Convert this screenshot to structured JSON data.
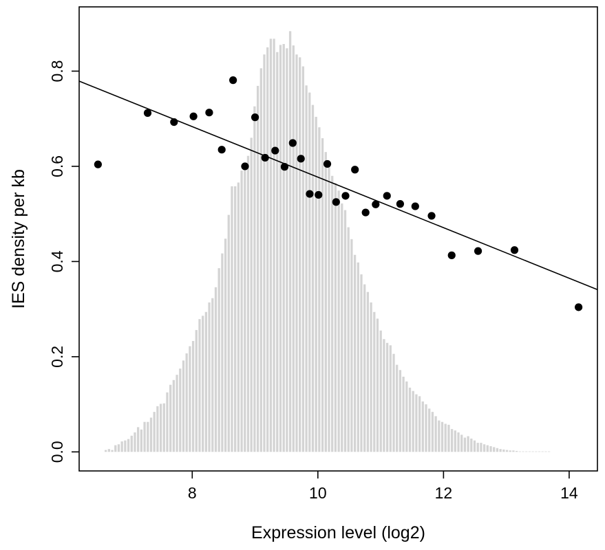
{
  "chart_data": {
    "type": "scatter",
    "xlabel": "Expression level (log2)",
    "ylabel": "IES density per kb",
    "xlim": [
      6.2,
      14.45
    ],
    "ylim": [
      -0.04,
      0.935
    ],
    "x_ticks": [
      8,
      10,
      12,
      14
    ],
    "y_ticks": [
      0.0,
      0.2,
      0.4,
      0.6,
      0.8
    ],
    "x_tick_labels": [
      "8",
      "10",
      "12",
      "14"
    ],
    "y_tick_labels": [
      "0.0",
      "0.2",
      "0.4",
      "0.6",
      "0.8"
    ],
    "grid": false,
    "colors": {
      "histogram": "#d4d4d4",
      "points": "#000000",
      "line": "#000000"
    },
    "histogram": {
      "bin_start": 6.6,
      "bin_width": 0.0515,
      "values": [
        0.004,
        0.006,
        0.004,
        0.014,
        0.016,
        0.022,
        0.024,
        0.027,
        0.034,
        0.041,
        0.052,
        0.047,
        0.063,
        0.063,
        0.072,
        0.084,
        0.096,
        0.101,
        0.102,
        0.125,
        0.141,
        0.151,
        0.162,
        0.175,
        0.192,
        0.207,
        0.222,
        0.233,
        0.256,
        0.279,
        0.286,
        0.294,
        0.314,
        0.323,
        0.346,
        0.386,
        0.417,
        0.448,
        0.498,
        0.558,
        0.558,
        0.566,
        0.591,
        0.608,
        0.622,
        0.66,
        0.726,
        0.769,
        0.806,
        0.835,
        0.85,
        0.868,
        0.868,
        0.84,
        0.855,
        0.857,
        0.848,
        0.884,
        0.854,
        0.835,
        0.829,
        0.81,
        0.77,
        0.755,
        0.729,
        0.704,
        0.682,
        0.659,
        0.63,
        0.6,
        0.58,
        0.565,
        0.549,
        0.522,
        0.508,
        0.472,
        0.447,
        0.414,
        0.398,
        0.373,
        0.352,
        0.336,
        0.314,
        0.294,
        0.28,
        0.255,
        0.237,
        0.229,
        0.224,
        0.206,
        0.183,
        0.172,
        0.158,
        0.148,
        0.135,
        0.128,
        0.121,
        0.117,
        0.106,
        0.1,
        0.091,
        0.084,
        0.075,
        0.066,
        0.063,
        0.059,
        0.057,
        0.048,
        0.045,
        0.041,
        0.036,
        0.03,
        0.033,
        0.028,
        0.024,
        0.019,
        0.019,
        0.016,
        0.014,
        0.012,
        0.01,
        0.008,
        0.006,
        0.005,
        0.004,
        0.003,
        0.003,
        0.002,
        0.001,
        0.001,
        0.001,
        0.001,
        0.001,
        0.001,
        0.001,
        0.001,
        0.001,
        0.001
      ]
    },
    "points": [
      {
        "x": 6.5,
        "y": 0.604
      },
      {
        "x": 7.29,
        "y": 0.712
      },
      {
        "x": 7.71,
        "y": 0.693
      },
      {
        "x": 8.02,
        "y": 0.705
      },
      {
        "x": 8.27,
        "y": 0.713
      },
      {
        "x": 8.47,
        "y": 0.635
      },
      {
        "x": 8.65,
        "y": 0.781
      },
      {
        "x": 8.84,
        "y": 0.6
      },
      {
        "x": 9.0,
        "y": 0.703
      },
      {
        "x": 9.16,
        "y": 0.618
      },
      {
        "x": 9.32,
        "y": 0.633
      },
      {
        "x": 9.47,
        "y": 0.599
      },
      {
        "x": 9.6,
        "y": 0.649
      },
      {
        "x": 9.73,
        "y": 0.616
      },
      {
        "x": 9.87,
        "y": 0.542
      },
      {
        "x": 10.01,
        "y": 0.54
      },
      {
        "x": 10.15,
        "y": 0.605
      },
      {
        "x": 10.29,
        "y": 0.525
      },
      {
        "x": 10.44,
        "y": 0.538
      },
      {
        "x": 10.59,
        "y": 0.593
      },
      {
        "x": 10.76,
        "y": 0.503
      },
      {
        "x": 10.92,
        "y": 0.52
      },
      {
        "x": 11.1,
        "y": 0.538
      },
      {
        "x": 11.31,
        "y": 0.521
      },
      {
        "x": 11.55,
        "y": 0.516
      },
      {
        "x": 11.81,
        "y": 0.496
      },
      {
        "x": 12.13,
        "y": 0.413
      },
      {
        "x": 12.55,
        "y": 0.422
      },
      {
        "x": 13.13,
        "y": 0.424
      },
      {
        "x": 14.15,
        "y": 0.304
      }
    ],
    "regression_line": {
      "x": [
        6.2,
        14.45
      ],
      "y": [
        0.779,
        0.341
      ]
    }
  }
}
